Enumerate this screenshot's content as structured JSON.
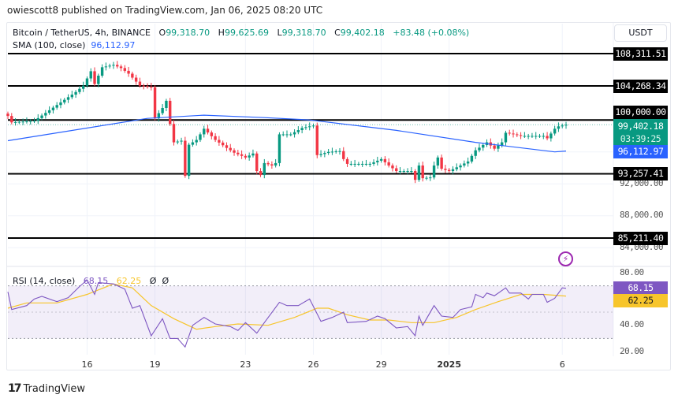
{
  "published": "owiescott8 published on TradingView.com, Jan 06, 2025 08:20 UTC",
  "legend": {
    "symbol": "Bitcoin / TetherUS, 4h, BINANCE",
    "o_label": "O",
    "o": "99,318.70",
    "h_label": "H",
    "h": "99,625.69",
    "l_label": "L",
    "l": "99,318.70",
    "c_label": "C",
    "c": "99,402.18",
    "change": "+83.48 (+0.08%)",
    "sma_label": "SMA (100, close)",
    "sma": "96,112.97"
  },
  "rsi_legend": {
    "label": "RSI (14, close)",
    "rsi": "68.15",
    "ma": "62.25",
    "extra1": "Ø",
    "extra2": "Ø"
  },
  "currency_button": "USDT",
  "price_labels": {
    "current": "99,402.18",
    "countdown": "03:39:25",
    "sma": "96,112.97"
  },
  "levels": [
    {
      "value": 108311.51,
      "label": "108,311.51"
    },
    {
      "value": 104268.34,
      "label": "104,268.34"
    },
    {
      "value": 100000,
      "label": "100,000.00"
    },
    {
      "value": 93257.41,
      "label": "93,257.41"
    },
    {
      "value": 85211.4,
      "label": "85,211.40"
    }
  ],
  "price_axis": [
    {
      "value": 92000,
      "label": "92,000.00"
    },
    {
      "value": 88000,
      "label": "88,000.00"
    },
    {
      "value": 84000,
      "label": "84,000.00"
    }
  ],
  "rsi_axis": [
    {
      "value": 80,
      "label": "80.00"
    },
    {
      "value": 40,
      "label": "40.00"
    },
    {
      "value": 20,
      "label": "20.00"
    }
  ],
  "rsi_labels": {
    "rsi": "68.15",
    "ma": "62.25"
  },
  "time_ticks": [
    {
      "t": "2024-12-16 00:00",
      "label": "16"
    },
    {
      "t": "2024-12-19 00:00",
      "label": "19"
    },
    {
      "t": "2024-12-23 00:00",
      "label": "23"
    },
    {
      "t": "2024-12-26 00:00",
      "label": "26"
    },
    {
      "t": "2024-12-29 00:00",
      "label": "29"
    },
    {
      "t": "2025-01-01 00:00",
      "label": "2025"
    },
    {
      "t": "2025-01-06 00:00",
      "label": "6"
    }
  ],
  "brand": "TradingView",
  "colors": {
    "up": "#089981",
    "down": "#f23645",
    "sma": "#2962ff",
    "rsi": "#7e57c2",
    "rsi_ma": "#f7c52b",
    "level": "#000000"
  },
  "chart_data": [
    {
      "type": "candlestick",
      "interval": "4h",
      "ylim": [
        82000,
        111000
      ],
      "grid": true,
      "close": [
        [
          "2024-12-12 12:00",
          100500
        ],
        [
          "2024-12-12 16:00",
          99700
        ],
        [
          "2024-12-13 16:00",
          99900
        ],
        [
          "2024-12-14 20:00",
          102200
        ],
        [
          "2024-12-15 12:00",
          103500
        ],
        [
          "2024-12-15 20:00",
          104300
        ],
        [
          "2024-12-16 04:00",
          106100
        ],
        [
          "2024-12-16 08:00",
          104500
        ],
        [
          "2024-12-16 16:00",
          106600
        ],
        [
          "2024-12-17 04:00",
          106900
        ],
        [
          "2024-12-17 12:00",
          106500
        ],
        [
          "2024-12-17 20:00",
          105800
        ],
        [
          "2024-12-18 08:00",
          104300
        ],
        [
          "2024-12-18 20:00",
          104100
        ],
        [
          "2024-12-19 00:00",
          100200
        ],
        [
          "2024-12-19 08:00",
          101500
        ],
        [
          "2024-12-19 12:00",
          102400
        ],
        [
          "2024-12-19 16:00",
          99500
        ],
        [
          "2024-12-19 20:00",
          97200
        ],
        [
          "2024-12-20 04:00",
          97400
        ],
        [
          "2024-12-20 08:00",
          93000
        ],
        [
          "2024-12-20 12:00",
          96900
        ],
        [
          "2024-12-20 20:00",
          97500
        ],
        [
          "2024-12-21 04:00",
          98900
        ],
        [
          "2024-12-21 16:00",
          97500
        ],
        [
          "2024-12-22 04:00",
          96500
        ],
        [
          "2024-12-22 12:00",
          95900
        ],
        [
          "2024-12-23 00:00",
          95300
        ],
        [
          "2024-12-23 08:00",
          95800
        ],
        [
          "2024-12-23 12:00",
          93600
        ],
        [
          "2024-12-23 16:00",
          93100
        ],
        [
          "2024-12-23 20:00",
          94600
        ],
        [
          "2024-12-24 04:00",
          94300
        ],
        [
          "2024-12-24 08:00",
          94600
        ],
        [
          "2024-12-24 12:00",
          98200
        ],
        [
          "2024-12-25 00:00",
          98200
        ],
        [
          "2024-12-25 12:00",
          99000
        ],
        [
          "2024-12-26 00:00",
          99300
        ],
        [
          "2024-12-26 04:00",
          95600
        ],
        [
          "2024-12-26 16:00",
          96000
        ],
        [
          "2024-12-27 04:00",
          96100
        ],
        [
          "2024-12-27 08:00",
          95100
        ],
        [
          "2024-12-27 12:00",
          94500
        ],
        [
          "2024-12-28 12:00",
          94500
        ],
        [
          "2024-12-29 00:00",
          95100
        ],
        [
          "2024-12-29 08:00",
          94300
        ],
        [
          "2024-12-29 16:00",
          93600
        ],
        [
          "2024-12-30 08:00",
          93600
        ],
        [
          "2024-12-30 12:00",
          92500
        ],
        [
          "2024-12-30 16:00",
          94300
        ],
        [
          "2024-12-30 20:00",
          92700
        ],
        [
          "2024-12-31 04:00",
          92800
        ],
        [
          "2024-12-31 08:00",
          94300
        ],
        [
          "2024-12-31 12:00",
          95300
        ],
        [
          "2024-12-31 16:00",
          93900
        ],
        [
          "2025-01-01 00:00",
          93600
        ],
        [
          "2025-01-01 12:00",
          94300
        ],
        [
          "2025-01-01 20:00",
          94800
        ],
        [
          "2025-01-02 04:00",
          96200
        ],
        [
          "2025-01-02 16:00",
          97200
        ],
        [
          "2025-01-03 00:00",
          96400
        ],
        [
          "2025-01-03 08:00",
          97200
        ],
        [
          "2025-01-03 12:00",
          98400
        ],
        [
          "2025-01-04 04:00",
          98000
        ],
        [
          "2025-01-05 04:00",
          98000
        ],
        [
          "2025-01-05 08:00",
          97700
        ],
        [
          "2025-01-05 16:00",
          98900
        ],
        [
          "2025-01-05 20:00",
          99200
        ],
        [
          "2025-01-06 04:00",
          99402.18
        ]
      ],
      "sma": [
        [
          "2024-12-12 12:00",
          97400
        ],
        [
          "2024-12-18 16:00",
          100200
        ],
        [
          "2024-12-21 04:00",
          100600
        ],
        [
          "2024-12-23 20:00",
          100300
        ],
        [
          "2024-12-25 20:00",
          100000
        ],
        [
          "2024-12-29 16:00",
          98700
        ],
        [
          "2025-01-02 04:00",
          97200
        ],
        [
          "2025-01-05 16:00",
          96000
        ],
        [
          "2025-01-06 04:00",
          96112.97
        ]
      ]
    },
    {
      "type": "line",
      "ylim": [
        15,
        85
      ],
      "bands": [
        30,
        70
      ],
      "series": [
        {
          "name": "RSI",
          "values": [
            [
              "2024-12-12 12:00",
              65.5
            ],
            [
              "2024-12-12 16:00",
              52
            ],
            [
              "2024-12-13 08:00",
              55
            ],
            [
              "2024-12-13 16:00",
              60
            ],
            [
              "2024-12-14 00:00",
              62
            ],
            [
              "2024-12-14 16:00",
              58
            ],
            [
              "2024-12-15 04:00",
              61
            ],
            [
              "2024-12-15 16:00",
              69.5
            ],
            [
              "2024-12-16 00:00",
              74.5
            ],
            [
              "2024-12-16 08:00",
              63.5
            ],
            [
              "2024-12-16 12:00",
              72.5
            ],
            [
              "2024-12-17 04:00",
              71.5
            ],
            [
              "2024-12-17 16:00",
              67.5
            ],
            [
              "2024-12-18 00:00",
              53
            ],
            [
              "2024-12-18 08:00",
              55
            ],
            [
              "2024-12-18 20:00",
              32
            ],
            [
              "2024-12-19 08:00",
              45
            ],
            [
              "2024-12-19 16:00",
              30
            ],
            [
              "2024-12-20 00:00",
              30
            ],
            [
              "2024-12-20 08:00",
              23.5
            ],
            [
              "2024-12-20 16:00",
              40
            ],
            [
              "2024-12-21 04:00",
              46
            ],
            [
              "2024-12-21 16:00",
              41
            ],
            [
              "2024-12-22 08:00",
              39
            ],
            [
              "2024-12-22 16:00",
              36
            ],
            [
              "2024-12-23 00:00",
              42
            ],
            [
              "2024-12-23 12:00",
              34
            ],
            [
              "2024-12-23 20:00",
              42
            ],
            [
              "2024-12-24 12:00",
              57.5
            ],
            [
              "2024-12-24 20:00",
              55
            ],
            [
              "2024-12-25 08:00",
              55
            ],
            [
              "2024-12-25 20:00",
              60
            ],
            [
              "2024-12-26 08:00",
              43
            ],
            [
              "2024-12-26 20:00",
              46
            ],
            [
              "2024-12-27 08:00",
              50
            ],
            [
              "2024-12-27 12:00",
              42
            ],
            [
              "2024-12-28 08:00",
              43
            ],
            [
              "2024-12-28 20:00",
              47
            ],
            [
              "2024-12-29 04:00",
              45
            ],
            [
              "2024-12-29 16:00",
              38
            ],
            [
              "2024-12-30 04:00",
              39
            ],
            [
              "2024-12-30 12:00",
              32
            ],
            [
              "2024-12-30 16:00",
              47
            ],
            [
              "2024-12-30 20:00",
              40
            ],
            [
              "2024-12-31 08:00",
              55
            ],
            [
              "2024-12-31 16:00",
              47
            ],
            [
              "2025-01-01 04:00",
              46
            ],
            [
              "2025-01-01 12:00",
              52
            ],
            [
              "2025-01-02 00:00",
              54
            ],
            [
              "2025-01-02 04:00",
              63.5
            ],
            [
              "2025-01-02 12:00",
              61
            ],
            [
              "2025-01-02 16:00",
              64.5
            ],
            [
              "2025-01-03 00:00",
              62.5
            ],
            [
              "2025-01-03 12:00",
              68.5
            ],
            [
              "2025-01-03 16:00",
              64.5
            ],
            [
              "2025-01-04 04:00",
              64.5
            ],
            [
              "2025-01-04 12:00",
              60
            ],
            [
              "2025-01-04 16:00",
              63.5
            ],
            [
              "2025-01-05 04:00",
              63.5
            ],
            [
              "2025-01-05 08:00",
              57.5
            ],
            [
              "2025-01-05 16:00",
              60.5
            ],
            [
              "2025-01-06 00:00",
              68.5
            ],
            [
              "2025-01-06 04:00",
              68.15
            ]
          ]
        },
        {
          "name": "RSI MA",
          "values": [
            [
              "2024-12-12 12:00",
              53
            ],
            [
              "2024-12-13 08:00",
              57
            ],
            [
              "2024-12-14 16:00",
              57
            ],
            [
              "2024-12-16 00:00",
              63.5
            ],
            [
              "2024-12-17 04:00",
              71.5
            ],
            [
              "2024-12-18 00:00",
              68.5
            ],
            [
              "2024-12-18 20:00",
              55
            ],
            [
              "2024-12-19 20:00",
              45
            ],
            [
              "2024-12-20 20:00",
              37
            ],
            [
              "2024-12-21 16:00",
              39
            ],
            [
              "2024-12-22 16:00",
              41
            ],
            [
              "2024-12-24 00:00",
              40
            ],
            [
              "2024-12-25 04:00",
              46
            ],
            [
              "2024-12-26 04:00",
              53
            ],
            [
              "2024-12-26 16:00",
              53
            ],
            [
              "2024-12-27 12:00",
              48
            ],
            [
              "2024-12-28 12:00",
              44
            ],
            [
              "2024-12-29 08:00",
              44
            ],
            [
              "2024-12-30 08:00",
              42
            ],
            [
              "2024-12-31 08:00",
              42
            ],
            [
              "2025-01-01 08:00",
              46
            ],
            [
              "2025-01-02 04:00",
              52
            ],
            [
              "2025-01-03 04:00",
              58
            ],
            [
              "2025-01-04 04:00",
              63.5
            ],
            [
              "2025-01-05 04:00",
              63.5
            ],
            [
              "2025-01-06 04:00",
              62.25
            ]
          ]
        }
      ]
    }
  ]
}
